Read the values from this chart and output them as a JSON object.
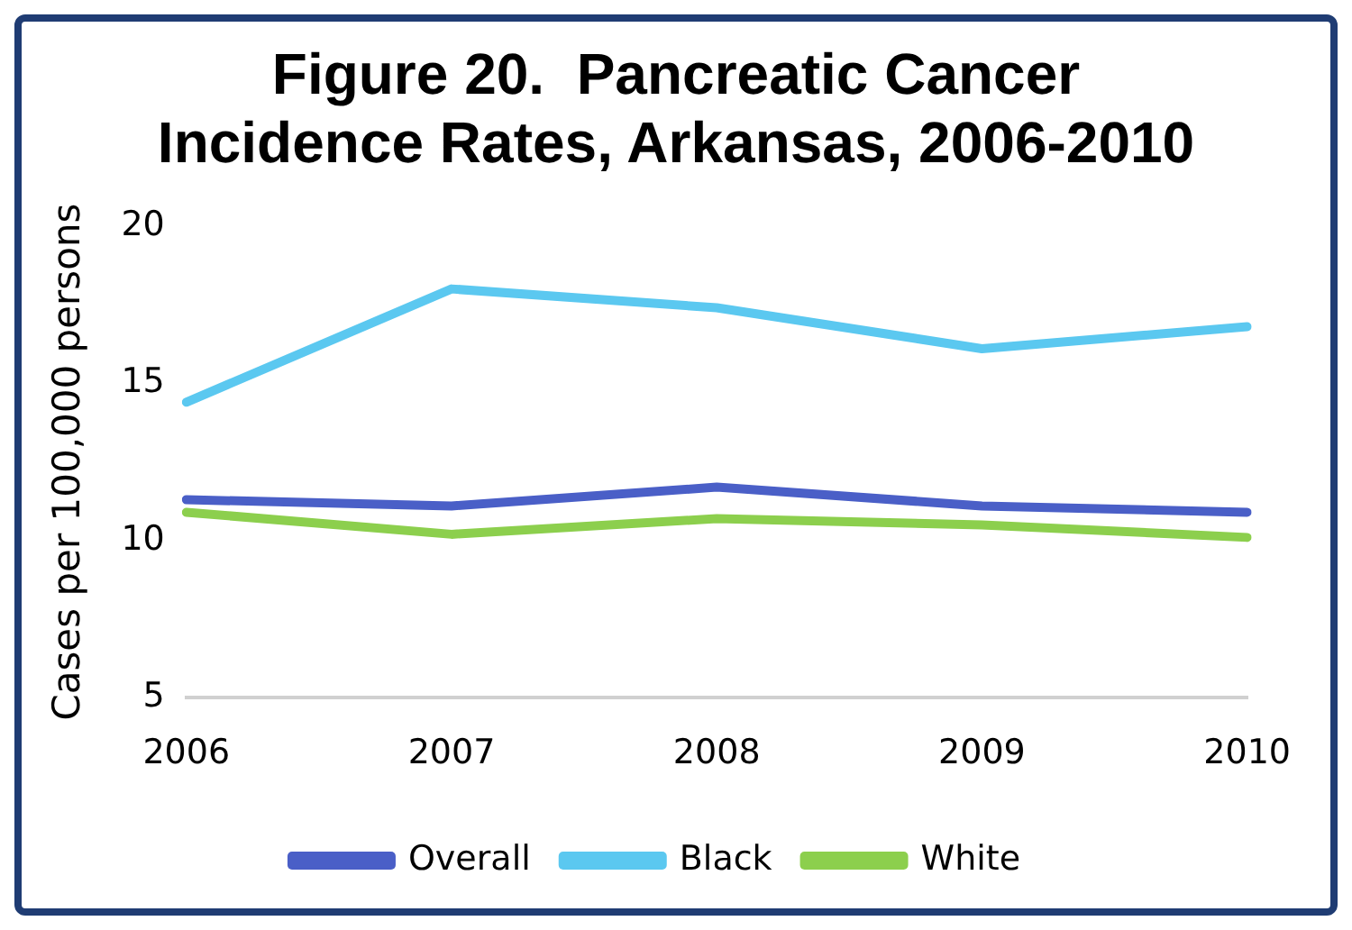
{
  "chart_data": {
    "type": "line",
    "title": "Figure 20.  Pancreatic Cancer Incidence Rates, Arkansas, 2006-2010",
    "ylabel": "Cases per 100,000 persons",
    "categories": [
      "2006",
      "2007",
      "2008",
      "2009",
      "2010"
    ],
    "series": [
      {
        "name": "Overall",
        "color": "#4a5fc7",
        "values": [
          11.3,
          11.1,
          11.7,
          11.1,
          10.9
        ]
      },
      {
        "name": "Black",
        "color": "#5bc8f0",
        "values": [
          14.4,
          18.0,
          17.4,
          16.1,
          16.8
        ]
      },
      {
        "name": "White",
        "color": "#8ccf4d",
        "values": [
          10.9,
          10.2,
          10.7,
          10.5,
          10.1
        ]
      }
    ],
    "ylim": [
      5,
      20
    ],
    "yticks": [
      5,
      10,
      15,
      20
    ],
    "grid": false,
    "legend": "bottom",
    "marker": "none",
    "line_style": "solid"
  }
}
